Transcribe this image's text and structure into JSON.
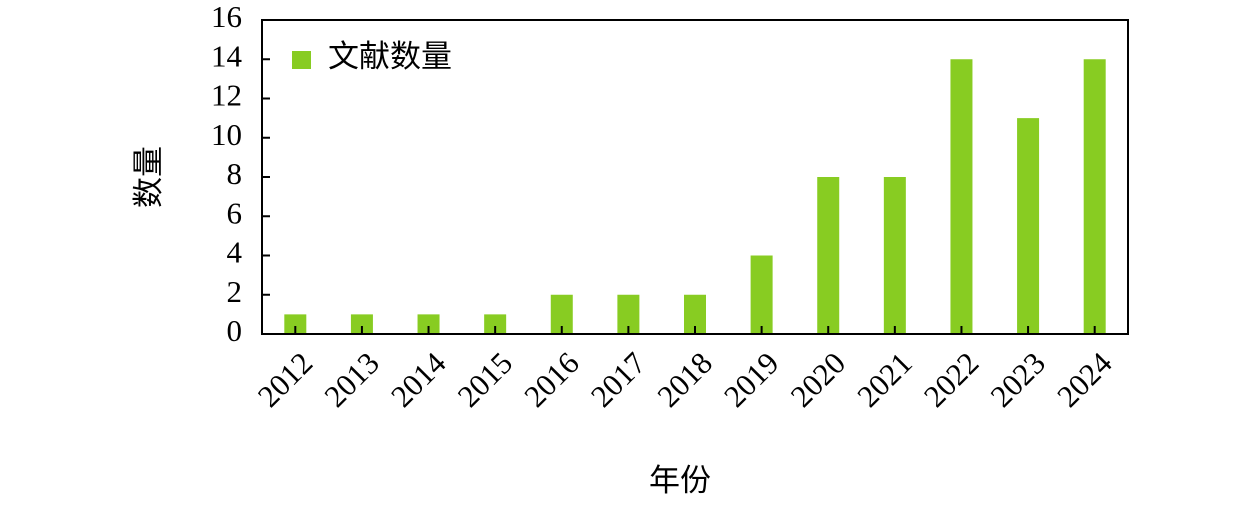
{
  "chart_data": {
    "type": "bar",
    "x_label": "年份",
    "y_label": "数量",
    "categories": [
      "2012",
      "2013",
      "2014",
      "2015",
      "2016",
      "2017",
      "2018",
      "2019",
      "2020",
      "2021",
      "2022",
      "2023",
      "2024"
    ],
    "series": [
      {
        "name": "文献数量",
        "color": "#88cc22",
        "values": [
          1,
          1,
          1,
          1,
          2,
          2,
          2,
          4,
          8,
          8,
          14,
          11,
          14
        ]
      }
    ],
    "ylim": [
      0,
      16
    ],
    "yticks": [
      0,
      2,
      4,
      6,
      8,
      10,
      12,
      14,
      16
    ],
    "grid": false,
    "legend": "upper left"
  }
}
